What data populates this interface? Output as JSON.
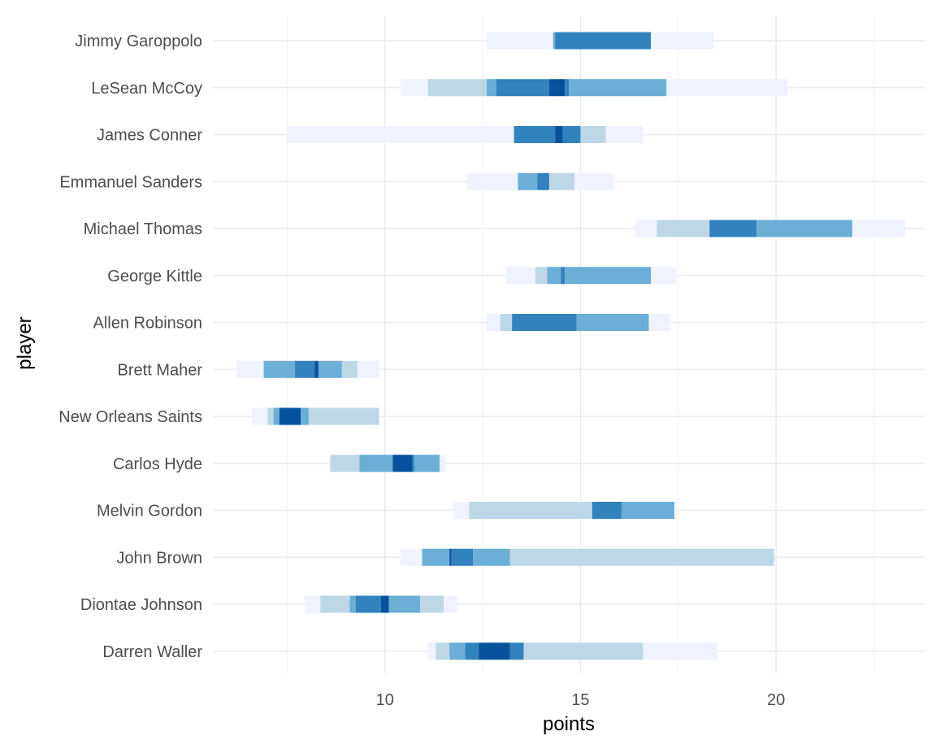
{
  "chart_data": {
    "type": "bar",
    "subtype": "interval-bands",
    "xlabel": "points",
    "ylabel": "player",
    "xlim": [
      5.6,
      23.8
    ],
    "x_ticks": [
      10,
      15,
      20
    ],
    "x_minor_ticks": [
      7.5,
      12.5,
      17.5,
      22.5
    ],
    "grid": true,
    "legend": "none",
    "band_colors": [
      "#eff3ff",
      "#bdd7e7",
      "#6baed6",
      "#3182bd",
      "#08519c"
    ],
    "categories": [
      "Jimmy Garoppolo",
      "LeSean McCoy",
      "James Conner",
      "Emmanuel Sanders",
      "Michael Thomas",
      "George Kittle",
      "Allen Robinson",
      "Brett Maher",
      "New Orleans Saints",
      "Carlos Hyde",
      "Melvin Gordon",
      "John Brown",
      "Diontae Johnson",
      "Darren Waller"
    ],
    "series": [
      {
        "player": "Jimmy Garoppolo",
        "segments": [
          [
            12.6,
            14.3,
            0
          ],
          [
            14.3,
            14.35,
            2
          ],
          [
            14.35,
            16.8,
            3
          ],
          [
            16.8,
            18.4,
            0
          ]
        ]
      },
      {
        "player": "LeSean McCoy",
        "segments": [
          [
            10.4,
            11.1,
            0
          ],
          [
            11.1,
            12.6,
            1
          ],
          [
            12.6,
            12.85,
            2
          ],
          [
            12.85,
            14.2,
            3
          ],
          [
            14.2,
            14.6,
            4
          ],
          [
            14.6,
            14.7,
            3
          ],
          [
            14.7,
            17.2,
            2
          ],
          [
            17.2,
            20.3,
            0
          ]
        ]
      },
      {
        "player": "James Conner",
        "segments": [
          [
            7.5,
            13.3,
            0
          ],
          [
            13.3,
            14.35,
            3
          ],
          [
            14.35,
            14.55,
            4
          ],
          [
            14.55,
            15.0,
            3
          ],
          [
            15.0,
            15.65,
            1
          ],
          [
            15.65,
            16.6,
            0
          ]
        ]
      },
      {
        "player": "Emmanuel Sanders",
        "segments": [
          [
            12.1,
            13.4,
            0
          ],
          [
            13.4,
            13.9,
            2
          ],
          [
            13.9,
            14.2,
            3
          ],
          [
            14.2,
            14.85,
            1
          ],
          [
            14.85,
            15.85,
            0
          ]
        ]
      },
      {
        "player": "Michael Thomas",
        "segments": [
          [
            16.4,
            16.95,
            0
          ],
          [
            16.95,
            18.3,
            1
          ],
          [
            18.3,
            19.5,
            3
          ],
          [
            19.5,
            21.95,
            2
          ],
          [
            21.95,
            23.3,
            0
          ]
        ]
      },
      {
        "player": "George Kittle",
        "segments": [
          [
            13.1,
            13.85,
            0
          ],
          [
            13.85,
            14.15,
            1
          ],
          [
            14.15,
            14.5,
            2
          ],
          [
            14.5,
            14.6,
            3
          ],
          [
            14.6,
            16.8,
            2
          ],
          [
            16.8,
            17.45,
            0
          ]
        ]
      },
      {
        "player": "Allen Robinson",
        "segments": [
          [
            12.6,
            12.95,
            0
          ],
          [
            12.95,
            13.25,
            1
          ],
          [
            13.25,
            14.9,
            3
          ],
          [
            14.9,
            16.75,
            2
          ],
          [
            16.75,
            17.3,
            0
          ]
        ]
      },
      {
        "player": "Brett Maher",
        "segments": [
          [
            6.2,
            6.9,
            0
          ],
          [
            6.9,
            7.7,
            2
          ],
          [
            7.7,
            8.2,
            3
          ],
          [
            8.2,
            8.3,
            4
          ],
          [
            8.3,
            8.9,
            2
          ],
          [
            8.9,
            9.3,
            1
          ],
          [
            9.3,
            9.85,
            0
          ]
        ]
      },
      {
        "player": "New Orleans Saints",
        "segments": [
          [
            6.6,
            7.0,
            0
          ],
          [
            7.0,
            7.15,
            1
          ],
          [
            7.15,
            7.3,
            2
          ],
          [
            7.3,
            7.85,
            4
          ],
          [
            7.85,
            8.05,
            2
          ],
          [
            8.05,
            9.85,
            1
          ]
        ]
      },
      {
        "player": "Carlos Hyde",
        "segments": [
          [
            8.6,
            9.35,
            1
          ],
          [
            9.35,
            10.2,
            2
          ],
          [
            10.2,
            10.7,
            4
          ],
          [
            10.7,
            10.75,
            3
          ],
          [
            10.75,
            11.4,
            2
          ],
          [
            11.4,
            11.55,
            0
          ]
        ]
      },
      {
        "player": "Melvin Gordon",
        "segments": [
          [
            11.75,
            12.15,
            0
          ],
          [
            12.15,
            15.3,
            1
          ],
          [
            15.3,
            16.05,
            3
          ],
          [
            16.05,
            17.4,
            2
          ],
          [
            17.4,
            17.45,
            0
          ]
        ]
      },
      {
        "player": "John Brown",
        "segments": [
          [
            10.4,
            10.95,
            0
          ],
          [
            10.95,
            11.65,
            2
          ],
          [
            11.65,
            11.7,
            4
          ],
          [
            11.7,
            12.25,
            3
          ],
          [
            12.25,
            13.2,
            2
          ],
          [
            13.2,
            19.95,
            1
          ]
        ]
      },
      {
        "player": "Diontae Johnson",
        "segments": [
          [
            7.95,
            8.35,
            0
          ],
          [
            8.35,
            9.1,
            1
          ],
          [
            9.1,
            9.25,
            2
          ],
          [
            9.25,
            9.9,
            3
          ],
          [
            9.9,
            10.1,
            4
          ],
          [
            10.1,
            10.9,
            2
          ],
          [
            10.9,
            11.5,
            1
          ],
          [
            11.5,
            11.85,
            0
          ]
        ]
      },
      {
        "player": "Darren Waller",
        "segments": [
          [
            11.1,
            11.3,
            0
          ],
          [
            11.3,
            11.65,
            1
          ],
          [
            11.65,
            12.05,
            2
          ],
          [
            12.05,
            12.4,
            3
          ],
          [
            12.4,
            13.2,
            4
          ],
          [
            13.2,
            13.55,
            3
          ],
          [
            13.55,
            16.6,
            1
          ],
          [
            16.6,
            18.5,
            0
          ]
        ]
      }
    ]
  }
}
